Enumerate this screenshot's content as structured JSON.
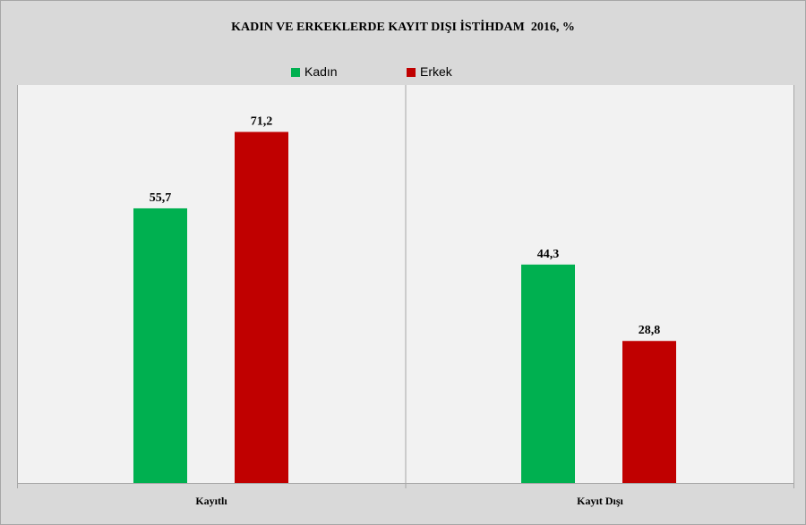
{
  "chart_data": {
    "type": "bar",
    "title": "KADIN VE ERKEKLERDE KAYIT DIŞI İSTİHDAM  2016, %",
    "categories": [
      "Kayıtlı",
      "Kayıt Dışı"
    ],
    "series": [
      {
        "name": "Kadın",
        "color": "#00b050",
        "values": [
          55.7,
          44.3
        ]
      },
      {
        "name": "Erkek",
        "color": "#c00000",
        "values": [
          71.2,
          28.8
        ]
      }
    ],
    "value_labels": [
      [
        "55,7",
        "44,3"
      ],
      [
        "71,2",
        "28,8"
      ]
    ],
    "ylim": [
      0,
      80
    ],
    "xlabel": "",
    "ylabel": "",
    "legend_position": "top",
    "grid": false,
    "plot_background": "#f2f2f2",
    "chart_background": "#d9d9d9"
  }
}
